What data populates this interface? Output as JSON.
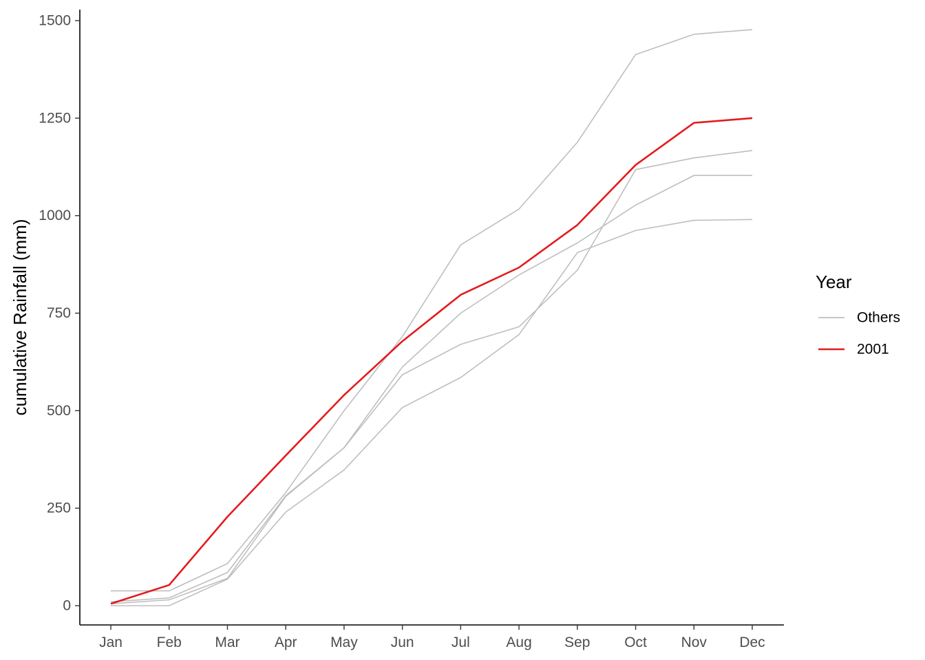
{
  "chart_data": {
    "type": "line",
    "title": "",
    "xlabel": "",
    "ylabel": "cumulative Rainfall (mm)",
    "categories": [
      "Jan",
      "Feb",
      "Mar",
      "Apr",
      "May",
      "Jun",
      "Jul",
      "Aug",
      "Sep",
      "Oct",
      "Nov",
      "Dec"
    ],
    "ylim": [
      -50,
      1530
    ],
    "yticks": [
      0,
      250,
      500,
      750,
      1000,
      1250,
      1500
    ],
    "grid": false,
    "legend": {
      "title": "Year",
      "placement": "right",
      "entries": [
        {
          "label": "Others",
          "color": "#bebebe"
        },
        {
          "label": "2001",
          "color": "#e41a1c"
        }
      ]
    },
    "series": [
      {
        "group": "Others",
        "color": "#bebebe",
        "values": [
          38,
          38,
          108,
          290,
          500,
          690,
          925,
          1017,
          1188,
          1413,
          1465,
          1477
        ]
      },
      {
        "group": "Others",
        "color": "#bebebe",
        "values": [
          10,
          20,
          85,
          282,
          405,
          612,
          750,
          848,
          930,
          1027,
          1103,
          1103
        ]
      },
      {
        "group": "Others",
        "color": "#bebebe",
        "values": [
          5,
          15,
          70,
          280,
          405,
          592,
          670,
          715,
          860,
          1118,
          1148,
          1167
        ]
      },
      {
        "group": "Others",
        "color": "#bebebe",
        "values": [
          0,
          0,
          68,
          240,
          348,
          508,
          585,
          695,
          905,
          962,
          988,
          990
        ]
      },
      {
        "group": "2001",
        "color": "#e41a1c",
        "values": [
          5,
          53,
          228,
          385,
          540,
          678,
          797,
          867,
          976,
          1130,
          1238,
          1250
        ]
      }
    ]
  }
}
